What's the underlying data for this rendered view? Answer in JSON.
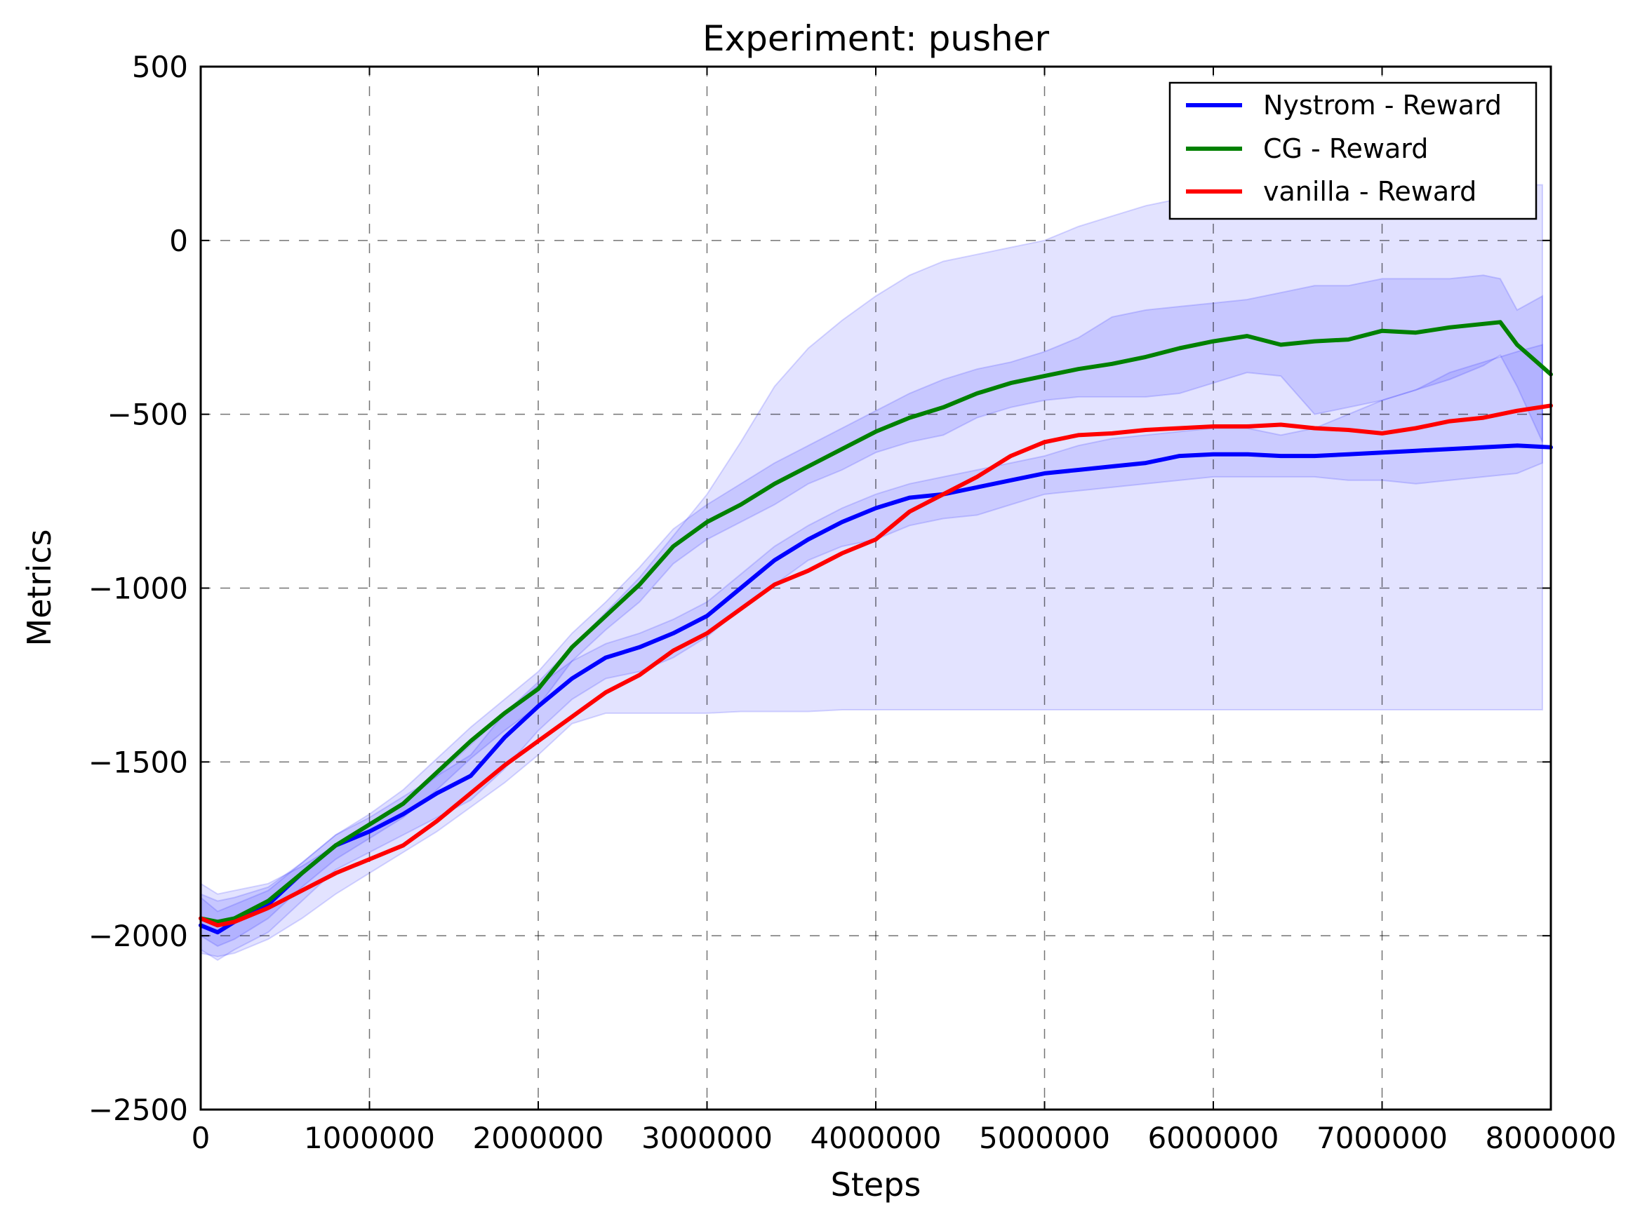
{
  "chart_data": {
    "type": "line",
    "title": "Experiment: pusher",
    "xlabel": "Steps",
    "ylabel": "Metrics",
    "xlim": [
      0,
      8000000
    ],
    "ylim": [
      -2500,
      500
    ],
    "x_ticks": [
      0,
      1000000,
      2000000,
      3000000,
      4000000,
      5000000,
      6000000,
      7000000,
      8000000
    ],
    "x_tick_labels": [
      "0",
      "1000000",
      "2000000",
      "3000000",
      "4000000",
      "5000000",
      "6000000",
      "7000000",
      "8000000"
    ],
    "y_ticks": [
      500,
      0,
      -500,
      -1000,
      -1500,
      -2000,
      -2500
    ],
    "y_tick_labels": [
      "500",
      "0",
      "−500",
      "−1000",
      "−1500",
      "−2000",
      "−2500"
    ],
    "grid": true,
    "legend_position": "top-right",
    "series": [
      {
        "name": "Nystrom - Reward",
        "color": "#0000ff",
        "x": [
          0,
          100000,
          200000,
          400000,
          600000,
          800000,
          1000000,
          1200000,
          1400000,
          1600000,
          1800000,
          2000000,
          2200000,
          2400000,
          2600000,
          2800000,
          3000000,
          3200000,
          3400000,
          3600000,
          3800000,
          4000000,
          4200000,
          4400000,
          4600000,
          4800000,
          5000000,
          5200000,
          5400000,
          5600000,
          5800000,
          6000000,
          6200000,
          6400000,
          6600000,
          6800000,
          7000000,
          7200000,
          7400000,
          7600000,
          7800000,
          8000000
        ],
        "values": [
          -1970,
          -1990,
          -1960,
          -1910,
          -1820,
          -1740,
          -1700,
          -1650,
          -1590,
          -1540,
          -1430,
          -1340,
          -1260,
          -1200,
          -1170,
          -1130,
          -1080,
          -1000,
          -920,
          -860,
          -810,
          -770,
          -740,
          -730,
          -710,
          -690,
          -670,
          -660,
          -650,
          -640,
          -620,
          -615,
          -615,
          -620,
          -620,
          -615,
          -610,
          -605,
          -600,
          -595,
          -590,
          -595
        ]
      },
      {
        "name": "CG - Reward",
        "color": "#008000",
        "x": [
          0,
          100000,
          200000,
          400000,
          600000,
          800000,
          1000000,
          1200000,
          1400000,
          1600000,
          1800000,
          2000000,
          2200000,
          2400000,
          2600000,
          2800000,
          3000000,
          3200000,
          3400000,
          3600000,
          3800000,
          4000000,
          4200000,
          4400000,
          4600000,
          4800000,
          5000000,
          5200000,
          5400000,
          5600000,
          5800000,
          6000000,
          6200000,
          6400000,
          6600000,
          6800000,
          7000000,
          7200000,
          7400000,
          7600000,
          7700000,
          7800000,
          8000000
        ],
        "values": [
          -1950,
          -1960,
          -1950,
          -1900,
          -1820,
          -1740,
          -1680,
          -1620,
          -1530,
          -1440,
          -1360,
          -1290,
          -1170,
          -1080,
          -990,
          -880,
          -810,
          -760,
          -700,
          -650,
          -600,
          -550,
          -510,
          -480,
          -440,
          -410,
          -390,
          -370,
          -355,
          -335,
          -310,
          -290,
          -275,
          -300,
          -290,
          -285,
          -260,
          -265,
          -250,
          -240,
          -235,
          -300,
          -385
        ]
      },
      {
        "name": "vanilla - Reward",
        "color": "#ff0000",
        "x": [
          0,
          100000,
          200000,
          400000,
          600000,
          800000,
          1000000,
          1200000,
          1400000,
          1600000,
          1800000,
          2000000,
          2200000,
          2400000,
          2600000,
          2800000,
          3000000,
          3200000,
          3400000,
          3600000,
          3800000,
          4000000,
          4200000,
          4400000,
          4600000,
          4800000,
          5000000,
          5200000,
          5400000,
          5600000,
          5800000,
          6000000,
          6200000,
          6400000,
          6600000,
          6800000,
          7000000,
          7200000,
          7400000,
          7600000,
          7800000,
          8000000
        ],
        "values": [
          -1950,
          -1970,
          -1960,
          -1920,
          -1870,
          -1820,
          -1780,
          -1740,
          -1670,
          -1590,
          -1510,
          -1440,
          -1370,
          -1300,
          -1250,
          -1180,
          -1130,
          -1060,
          -990,
          -950,
          -900,
          -860,
          -780,
          -730,
          -680,
          -620,
          -580,
          -560,
          -555,
          -545,
          -540,
          -535,
          -535,
          -530,
          -540,
          -545,
          -555,
          -540,
          -520,
          -510,
          -490,
          -475
        ]
      }
    ],
    "bands": [
      {
        "name": "vanilla - Reward band",
        "color": "#0000ff",
        "opacity": 0.11,
        "x": [
          0,
          100000,
          200000,
          400000,
          600000,
          800000,
          1000000,
          1200000,
          1400000,
          1600000,
          1800000,
          2000000,
          2200000,
          2400000,
          2600000,
          2800000,
          3000000,
          3200000,
          3400000,
          3600000,
          3800000,
          4000000,
          4200000,
          4400000,
          4600000,
          4800000,
          5000000,
          5200000,
          5400000,
          5600000,
          5800000,
          6000000,
          6200000,
          6400000,
          6600000,
          6800000,
          7000000,
          7200000,
          7400000,
          7600000,
          7800000,
          7950000
        ],
        "upper": [
          -1850,
          -1880,
          -1870,
          -1850,
          -1800,
          -1740,
          -1680,
          -1620,
          -1540,
          -1450,
          -1360,
          -1270,
          -1170,
          -1070,
          -970,
          -850,
          -730,
          -580,
          -420,
          -310,
          -230,
          -160,
          -100,
          -60,
          -40,
          -20,
          0,
          40,
          70,
          100,
          120,
          140,
          150,
          150,
          155,
          160,
          160,
          165,
          160,
          160,
          160,
          160
        ],
        "lower": [
          -2050,
          -2060,
          -2050,
          -2010,
          -1950,
          -1880,
          -1820,
          -1760,
          -1700,
          -1630,
          -1560,
          -1480,
          -1390,
          -1360,
          -1360,
          -1360,
          -1360,
          -1355,
          -1355,
          -1355,
          -1350,
          -1350,
          -1350,
          -1350,
          -1350,
          -1350,
          -1350,
          -1350,
          -1350,
          -1350,
          -1350,
          -1350,
          -1350,
          -1350,
          -1350,
          -1350,
          -1350,
          -1350,
          -1350,
          -1350,
          -1350,
          -1350
        ]
      },
      {
        "name": "CG - Reward band",
        "color": "#0000ff",
        "opacity": 0.12,
        "x": [
          0,
          100000,
          200000,
          400000,
          600000,
          800000,
          1000000,
          1200000,
          1400000,
          1600000,
          1800000,
          2000000,
          2200000,
          2400000,
          2600000,
          2800000,
          3000000,
          3200000,
          3400000,
          3600000,
          3800000,
          4000000,
          4200000,
          4400000,
          4600000,
          4800000,
          5000000,
          5200000,
          5400000,
          5600000,
          5800000,
          6000000,
          6200000,
          6400000,
          6600000,
          6800000,
          7000000,
          7200000,
          7400000,
          7600000,
          7700000,
          7800000,
          7950000
        ],
        "upper": [
          -1880,
          -1900,
          -1890,
          -1860,
          -1790,
          -1710,
          -1650,
          -1580,
          -1490,
          -1400,
          -1320,
          -1240,
          -1130,
          -1040,
          -940,
          -830,
          -760,
          -700,
          -640,
          -590,
          -540,
          -490,
          -440,
          -400,
          -370,
          -350,
          -320,
          -280,
          -220,
          -200,
          -190,
          -180,
          -170,
          -150,
          -130,
          -130,
          -110,
          -110,
          -110,
          -100,
          -110,
          -200,
          -160
        ],
        "lower": [
          -2000,
          -2030,
          -2010,
          -1950,
          -1860,
          -1780,
          -1720,
          -1660,
          -1580,
          -1490,
          -1410,
          -1340,
          -1210,
          -1120,
          -1040,
          -930,
          -860,
          -810,
          -760,
          -700,
          -660,
          -610,
          -580,
          -560,
          -510,
          -480,
          -460,
          -450,
          -450,
          -450,
          -440,
          -410,
          -380,
          -390,
          -500,
          -480,
          -460,
          -430,
          -400,
          -360,
          -330,
          -420,
          -580
        ]
      },
      {
        "name": "Nystrom - Reward band",
        "color": "#0000ff",
        "opacity": 0.1,
        "x": [
          0,
          100000,
          200000,
          400000,
          600000,
          800000,
          1000000,
          1200000,
          1400000,
          1600000,
          1800000,
          2000000,
          2200000,
          2400000,
          2600000,
          2800000,
          3000000,
          3200000,
          3400000,
          3600000,
          3800000,
          4000000,
          4200000,
          4400000,
          4600000,
          4800000,
          5000000,
          5200000,
          5400000,
          5600000,
          5800000,
          6000000,
          6200000,
          6400000,
          6600000,
          6800000,
          7000000,
          7200000,
          7400000,
          7600000,
          7800000,
          7950000
        ],
        "upper": [
          -1890,
          -1930,
          -1910,
          -1870,
          -1790,
          -1710,
          -1660,
          -1600,
          -1540,
          -1480,
          -1360,
          -1280,
          -1210,
          -1160,
          -1130,
          -1090,
          -1040,
          -960,
          -880,
          -820,
          -770,
          -730,
          -700,
          -680,
          -660,
          -640,
          -620,
          -590,
          -570,
          -560,
          -550,
          -540,
          -540,
          -560,
          -540,
          -500,
          -460,
          -430,
          -380,
          -350,
          -320,
          -300
        ],
        "lower": [
          -2040,
          -2070,
          -2040,
          -1990,
          -1900,
          -1810,
          -1760,
          -1710,
          -1660,
          -1610,
          -1520,
          -1410,
          -1320,
          -1260,
          -1240,
          -1200,
          -1140,
          -1060,
          -990,
          -920,
          -880,
          -860,
          -820,
          -800,
          -790,
          -760,
          -730,
          -720,
          -710,
          -700,
          -690,
          -680,
          -680,
          -680,
          -680,
          -690,
          -690,
          -700,
          -690,
          -680,
          -670,
          -640
        ]
      }
    ]
  }
}
